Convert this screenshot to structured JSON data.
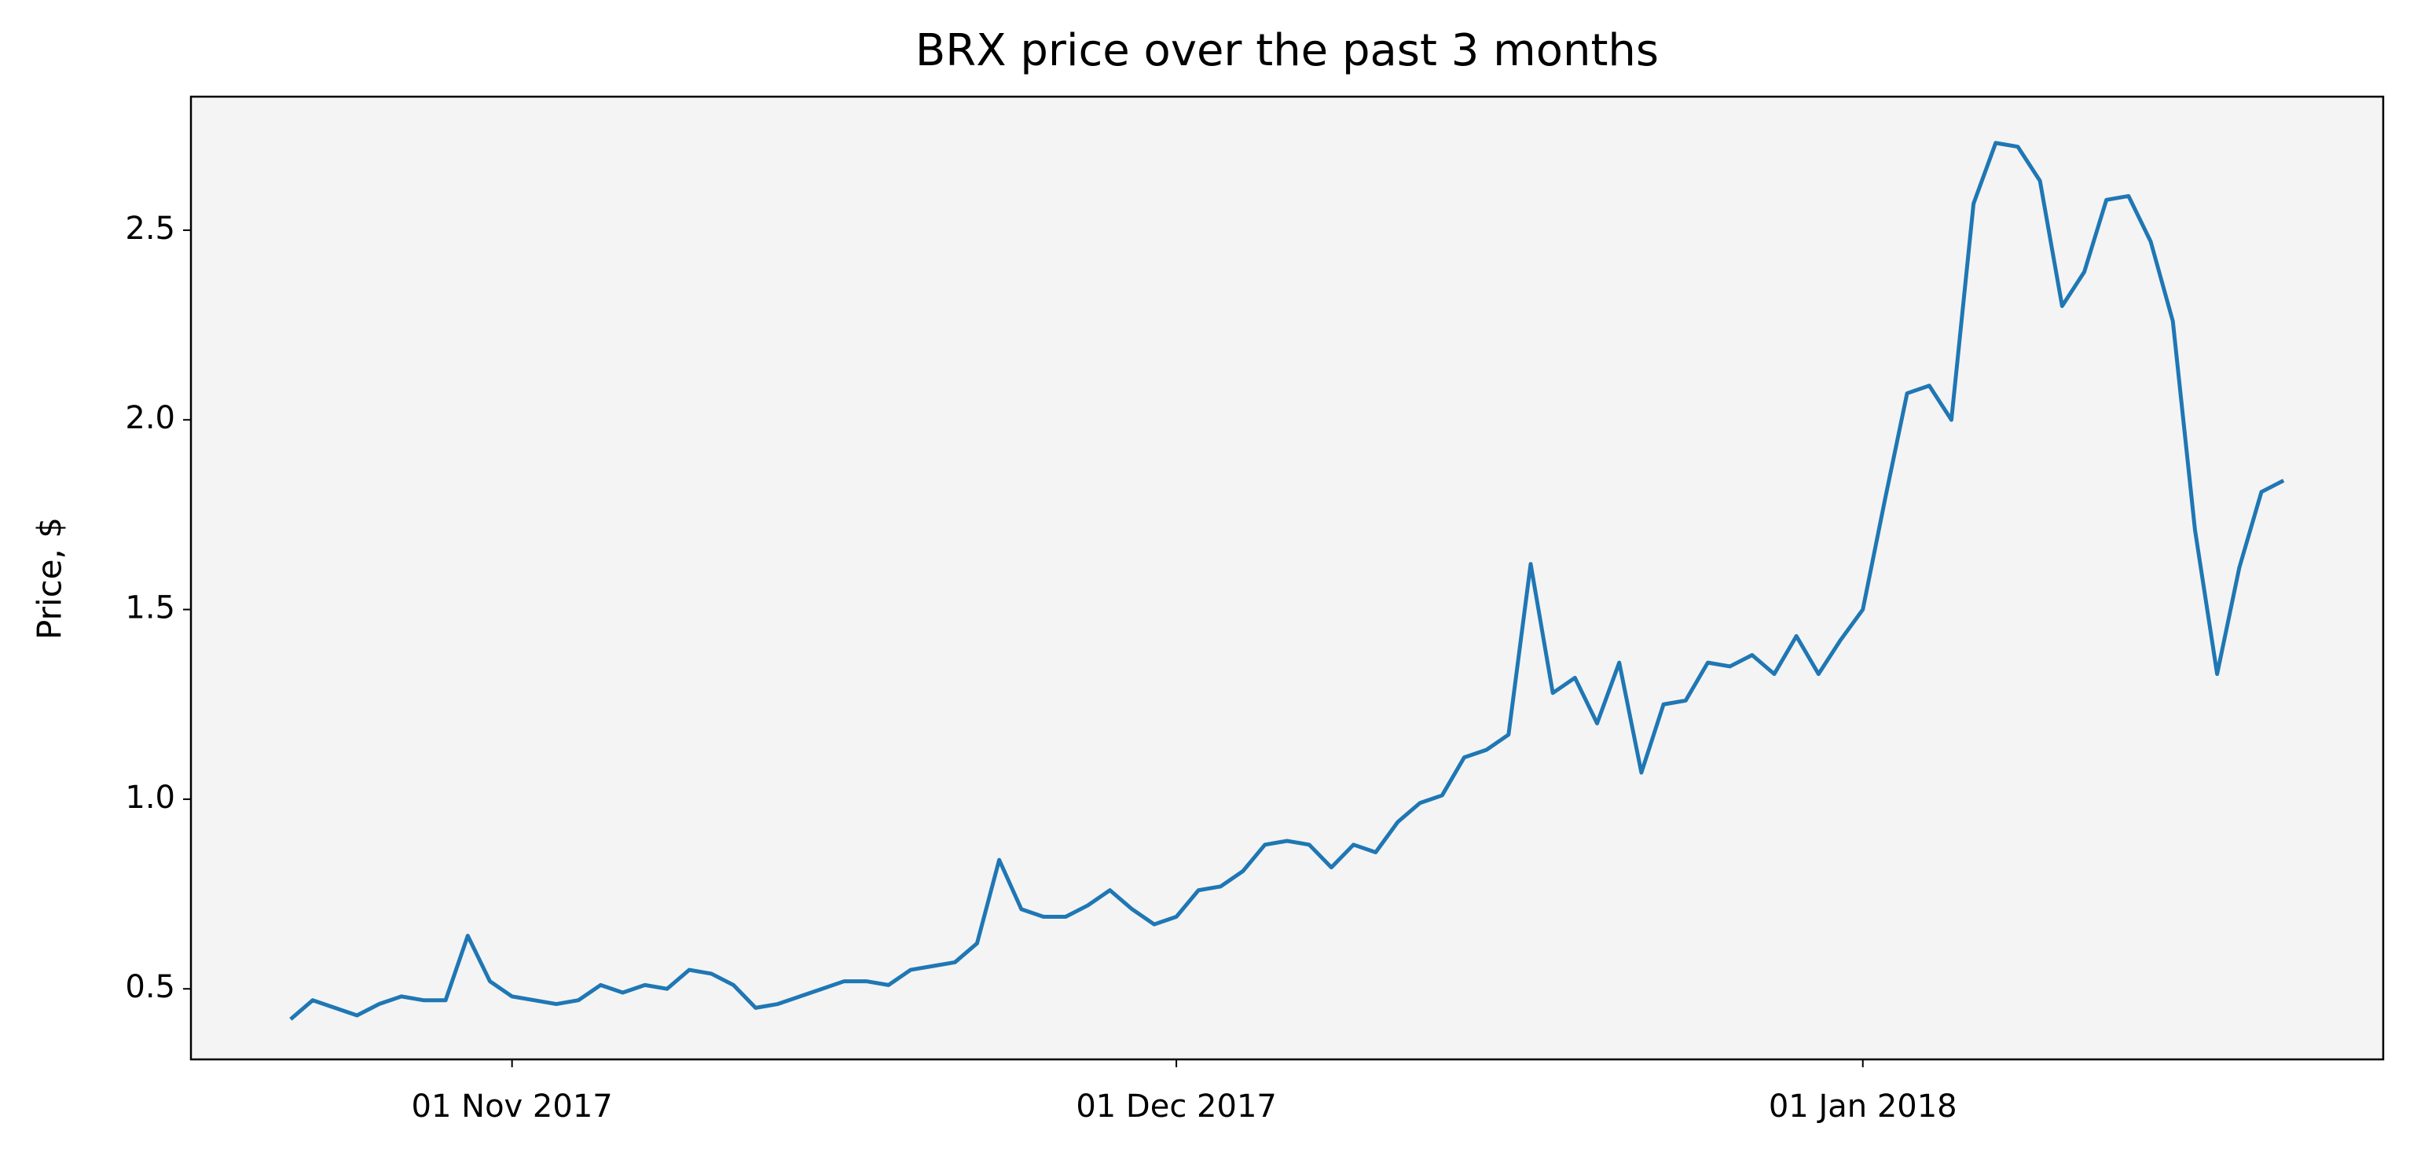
{
  "chart_data": {
    "type": "line",
    "title": "BRX price over the past 3 months",
    "y_label": "Price, $",
    "x": [
      "2017-10-22",
      "2017-10-23",
      "2017-10-24",
      "2017-10-25",
      "2017-10-26",
      "2017-10-27",
      "2017-10-28",
      "2017-10-29",
      "2017-10-30",
      "2017-10-31",
      "2017-11-01",
      "2017-11-02",
      "2017-11-03",
      "2017-11-04",
      "2017-11-05",
      "2017-11-06",
      "2017-11-07",
      "2017-11-08",
      "2017-11-09",
      "2017-11-10",
      "2017-11-11",
      "2017-11-12",
      "2017-11-13",
      "2017-11-14",
      "2017-11-15",
      "2017-11-16",
      "2017-11-17",
      "2017-11-18",
      "2017-11-19",
      "2017-11-20",
      "2017-11-21",
      "2017-11-22",
      "2017-11-23",
      "2017-11-24",
      "2017-11-25",
      "2017-11-26",
      "2017-11-27",
      "2017-11-28",
      "2017-11-29",
      "2017-11-30",
      "2017-12-01",
      "2017-12-02",
      "2017-12-03",
      "2017-12-04",
      "2017-12-05",
      "2017-12-06",
      "2017-12-07",
      "2017-12-08",
      "2017-12-09",
      "2017-12-10",
      "2017-12-11",
      "2017-12-12",
      "2017-12-13",
      "2017-12-14",
      "2017-12-15",
      "2017-12-16",
      "2017-12-17",
      "2017-12-18",
      "2017-12-19",
      "2017-12-20",
      "2017-12-21",
      "2017-12-22",
      "2017-12-23",
      "2017-12-24",
      "2017-12-25",
      "2017-12-26",
      "2017-12-27",
      "2017-12-28",
      "2017-12-29",
      "2017-12-30",
      "2017-12-31",
      "2018-01-01",
      "2018-01-02",
      "2018-01-03",
      "2018-01-04",
      "2018-01-05",
      "2018-01-06",
      "2018-01-07",
      "2018-01-08",
      "2018-01-09",
      "2018-01-10",
      "2018-01-11",
      "2018-01-12",
      "2018-01-13",
      "2018-01-14",
      "2018-01-15",
      "2018-01-16",
      "2018-01-17",
      "2018-01-18",
      "2018-01-19",
      "2018-01-20"
    ],
    "series": [
      {
        "color": "#1f77b4",
        "values": [
          0.42,
          0.47,
          0.45,
          0.43,
          0.46,
          0.48,
          0.47,
          0.47,
          0.64,
          0.52,
          0.48,
          0.47,
          0.46,
          0.47,
          0.51,
          0.49,
          0.51,
          0.5,
          0.55,
          0.54,
          0.51,
          0.45,
          0.46,
          0.48,
          0.5,
          0.52,
          0.52,
          0.51,
          0.55,
          0.56,
          0.57,
          0.62,
          0.84,
          0.71,
          0.69,
          0.69,
          0.72,
          0.76,
          0.71,
          0.67,
          0.69,
          0.76,
          0.77,
          0.81,
          0.88,
          0.89,
          0.88,
          0.82,
          0.88,
          0.86,
          0.94,
          0.99,
          1.01,
          1.11,
          1.13,
          1.17,
          1.62,
          1.28,
          1.32,
          1.2,
          1.36,
          1.07,
          1.25,
          1.26,
          1.36,
          1.35,
          1.38,
          1.33,
          1.43,
          1.33,
          1.42,
          1.5,
          1.79,
          2.07,
          2.09,
          2.0,
          2.57,
          2.73,
          2.72,
          2.63,
          2.3,
          2.39,
          2.58,
          2.59,
          2.47,
          2.26,
          1.71,
          1.33,
          1.61,
          1.81,
          1.84
        ]
      }
    ],
    "xlim": [
      "2017-10-17T12:00Z",
      "2018-01-24T12:00Z"
    ],
    "xticks": [
      {
        "value": "2017-11-01",
        "label": "01 Nov 2017"
      },
      {
        "value": "2017-12-01",
        "label": "01 Dec 2017"
      },
      {
        "value": "2018-01-01",
        "label": "01 Jan 2018"
      }
    ],
    "ylim": [
      0.314,
      2.852
    ],
    "yticks": [
      0.5,
      {
        "value": 1,
        "label": "1.0"
      },
      1.5,
      {
        "value": 2,
        "label": "2.0"
      },
      2.5
    ],
    "grid": false,
    "background": "#f4f4f4"
  }
}
